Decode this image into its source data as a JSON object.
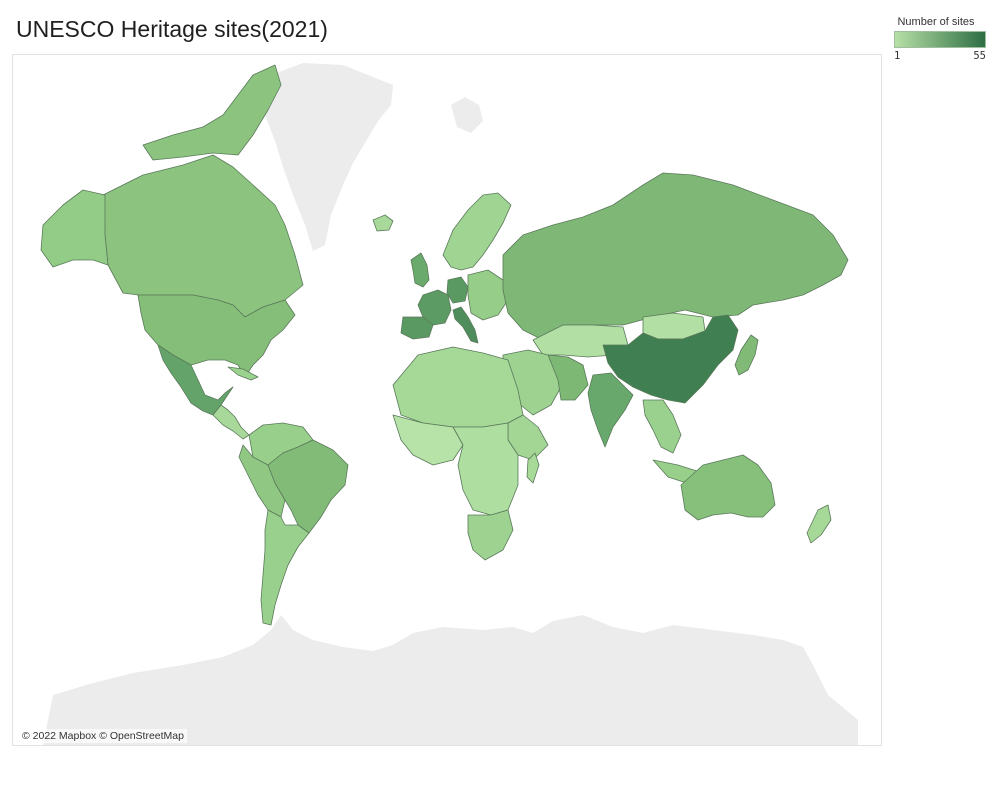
{
  "title": "UNESCO Heritage sites(2021)",
  "legend": {
    "title": "Number of sites",
    "min_label": "1",
    "max_label": "55",
    "color_low": "#b6e0a6",
    "color_high": "#2e6e43",
    "no_data_color": "#ececec"
  },
  "attribution": "© 2022 Mapbox © OpenStreetMap",
  "map_data": {
    "projection": "web-mercator",
    "encoding": "choropleth of number of UNESCO World Heritage sites per country",
    "highlights": [
      {
        "region": "China",
        "shade": "darkest"
      },
      {
        "region": "Italy",
        "shade": "dark"
      },
      {
        "region": "Germany",
        "shade": "dark"
      },
      {
        "region": "Spain",
        "shade": "dark"
      },
      {
        "region": "France",
        "shade": "dark"
      },
      {
        "region": "India",
        "shade": "medium-dark"
      },
      {
        "region": "Mexico",
        "shade": "medium-dark"
      },
      {
        "region": "Russia",
        "shade": "medium"
      },
      {
        "region": "Iran",
        "shade": "medium"
      },
      {
        "region": "United States",
        "shade": "medium"
      },
      {
        "region": "Brazil",
        "shade": "medium"
      },
      {
        "region": "Japan",
        "shade": "medium"
      },
      {
        "region": "Australia",
        "shade": "medium"
      },
      {
        "region": "Canada",
        "shade": "medium-light"
      },
      {
        "region": "Greenland",
        "shade": "no data"
      },
      {
        "region": "Antarctica",
        "shade": "no data"
      }
    ]
  }
}
